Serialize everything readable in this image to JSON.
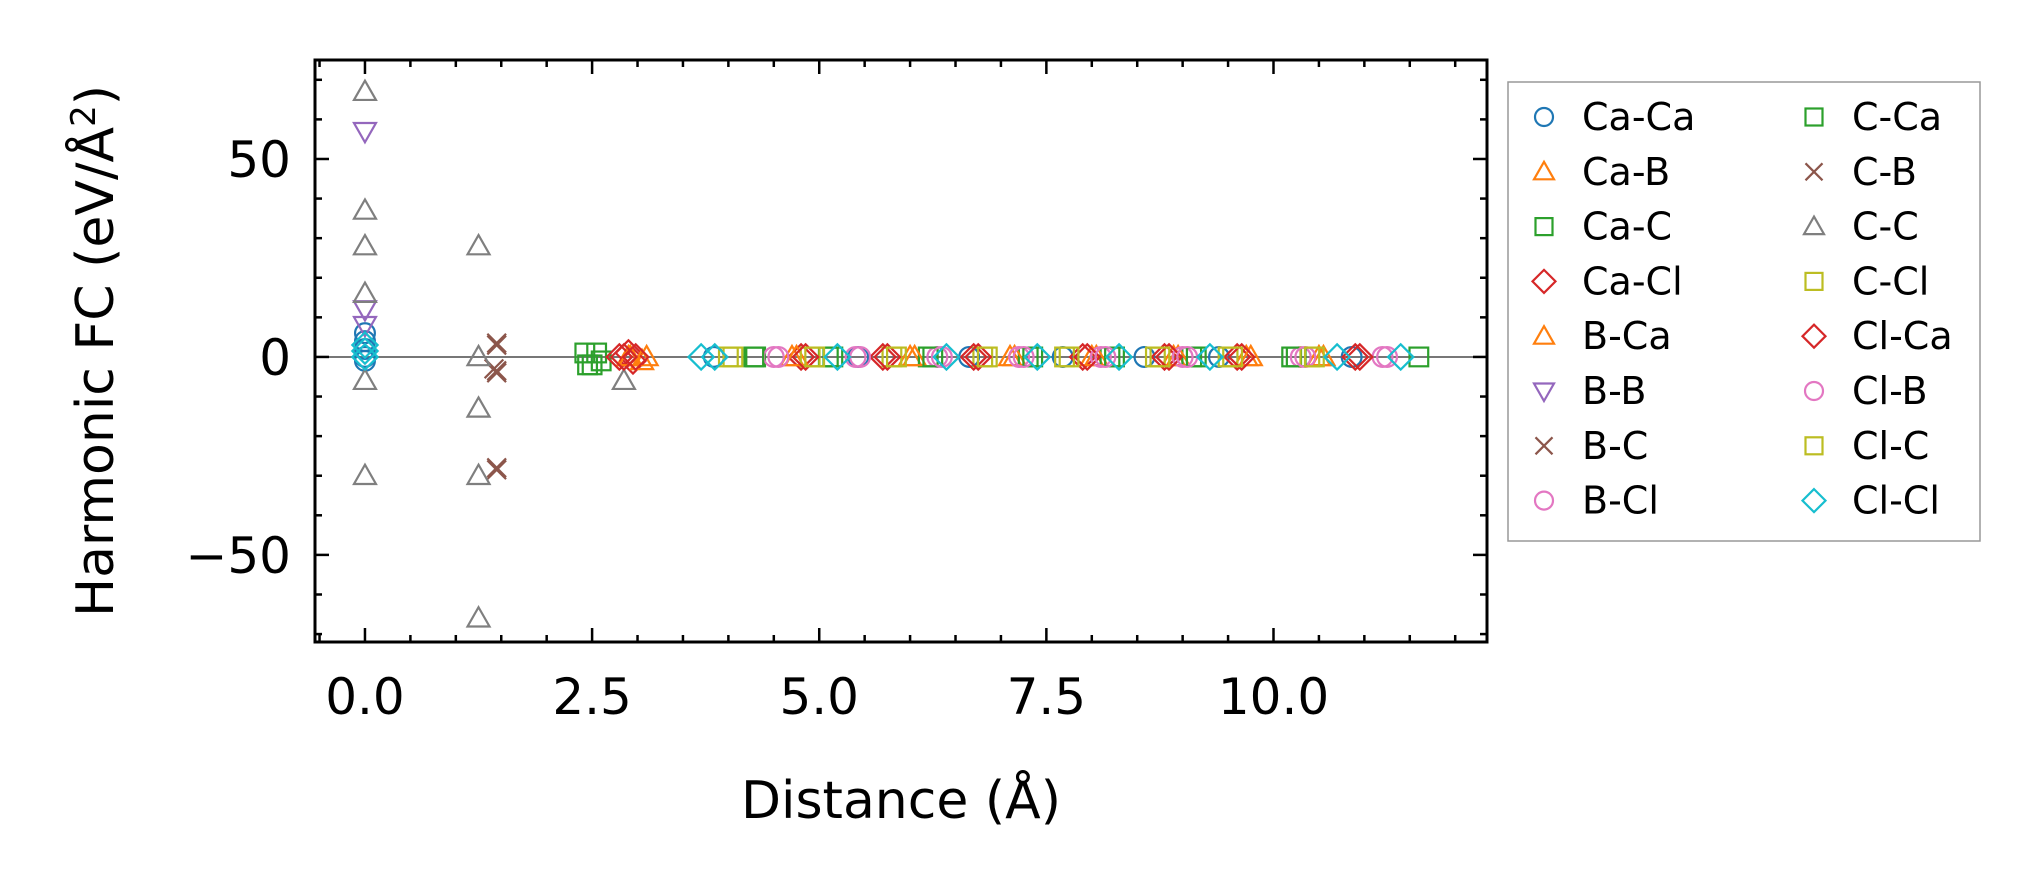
{
  "chart_data": {
    "type": "scatter",
    "title": "",
    "xlabel": "Distance (Å)",
    "ylabel_prefix": "Harmonic FC (eV/Å",
    "ylabel_sup": "2",
    "ylabel_suffix": ")",
    "xlim": [
      -0.55,
      12.35
    ],
    "ylim": [
      -72,
      75
    ],
    "xticks": [
      0.0,
      2.5,
      5.0,
      7.5,
      10.0
    ],
    "xtick_labels": [
      "0.0",
      "2.5",
      "5.0",
      "7.5",
      "10.0"
    ],
    "yticks": [
      -50,
      0,
      50
    ],
    "ytick_labels": [
      "−50",
      "0",
      "50"
    ],
    "reference_line_y": 0,
    "legend_position": "right outside",
    "series": [
      {
        "name": "Ca-Ca",
        "marker": "circle",
        "color": "#1f77b4",
        "points": [
          [
            0,
            0
          ],
          [
            0,
            2
          ],
          [
            0,
            4
          ],
          [
            0,
            6
          ],
          [
            0,
            -1
          ],
          [
            3.84,
            0
          ],
          [
            5.43,
            0
          ],
          [
            6.65,
            0
          ],
          [
            7.68,
            0
          ],
          [
            8.58,
            0
          ],
          [
            9.4,
            0
          ],
          [
            10.86,
            0
          ]
        ]
      },
      {
        "name": "Ca-B",
        "marker": "triangle-up",
        "color": "#ff7f0e",
        "points": [
          [
            2.9,
            0
          ],
          [
            3.1,
            0
          ],
          [
            4.7,
            0
          ],
          [
            6.0,
            0
          ],
          [
            7.1,
            0
          ],
          [
            8.0,
            0
          ],
          [
            8.9,
            0
          ],
          [
            9.7,
            0
          ],
          [
            10.5,
            0
          ]
        ]
      },
      {
        "name": "Ca-C",
        "marker": "square",
        "color": "#2ca02c",
        "points": [
          [
            2.45,
            -2
          ],
          [
            2.55,
            1
          ],
          [
            2.6,
            -1
          ],
          [
            4.3,
            0
          ],
          [
            5.1,
            0
          ],
          [
            6.2,
            0
          ],
          [
            7.3,
            0
          ],
          [
            8.2,
            0
          ],
          [
            9.1,
            0
          ],
          [
            10.2,
            0
          ]
        ]
      },
      {
        "name": "Ca-Cl",
        "marker": "diamond",
        "color": "#d62728",
        "points": [
          [
            2.8,
            0
          ],
          [
            2.9,
            1
          ],
          [
            2.95,
            -1
          ],
          [
            4.8,
            0
          ],
          [
            5.7,
            0
          ],
          [
            6.7,
            0
          ],
          [
            7.9,
            0
          ],
          [
            8.8,
            0
          ],
          [
            9.6,
            0
          ],
          [
            10.9,
            0
          ]
        ]
      },
      {
        "name": "B-Ca",
        "marker": "triangle-up",
        "color": "#ff7f0e",
        "points": [
          [
            2.92,
            0
          ],
          [
            3.05,
            -1
          ],
          [
            4.75,
            0
          ],
          [
            6.05,
            0
          ],
          [
            7.15,
            0
          ],
          [
            8.05,
            0
          ],
          [
            8.95,
            0
          ],
          [
            9.75,
            0
          ],
          [
            10.55,
            0
          ]
        ]
      },
      {
        "name": "B-B",
        "marker": "triangle-down",
        "color": "#9467bd",
        "points": [
          [
            0,
            57
          ],
          [
            0,
            12
          ],
          [
            0,
            8
          ]
        ]
      },
      {
        "name": "B-C",
        "marker": "x",
        "color": "#8c564b",
        "points": [
          [
            1.45,
            3
          ],
          [
            1.45,
            -4
          ],
          [
            1.42,
            -3
          ],
          [
            1.45,
            -28
          ]
        ]
      },
      {
        "name": "B-Cl",
        "marker": "circle",
        "color": "#e377c2",
        "points": [
          [
            4.5,
            0
          ],
          [
            5.4,
            0
          ],
          [
            6.3,
            0
          ],
          [
            7.2,
            0
          ],
          [
            8.1,
            0
          ],
          [
            9.0,
            0
          ],
          [
            10.3,
            0
          ],
          [
            11.2,
            0
          ]
        ]
      },
      {
        "name": "C-Ca",
        "marker": "square",
        "color": "#2ca02c",
        "points": [
          [
            2.42,
            1
          ],
          [
            2.5,
            -2
          ],
          [
            4.28,
            0
          ],
          [
            5.15,
            0
          ],
          [
            6.25,
            0
          ],
          [
            7.35,
            0
          ],
          [
            8.25,
            0
          ],
          [
            9.15,
            0
          ],
          [
            10.25,
            0
          ],
          [
            11.6,
            0
          ]
        ]
      },
      {
        "name": "C-B",
        "marker": "x",
        "color": "#8c564b",
        "points": [
          [
            1.45,
            3.5
          ],
          [
            1.45,
            -3.5
          ],
          [
            1.45,
            -28.5
          ]
        ]
      },
      {
        "name": "C-C",
        "marker": "triangle-up",
        "color": "#7f7f7f",
        "points": [
          [
            0,
            67
          ],
          [
            0,
            37
          ],
          [
            0,
            28
          ],
          [
            0,
            16
          ],
          [
            0,
            -6
          ],
          [
            0,
            -30
          ],
          [
            1.25,
            28
          ],
          [
            1.25,
            0
          ],
          [
            1.25,
            -13
          ],
          [
            1.25,
            -30
          ],
          [
            1.25,
            -66
          ],
          [
            2.85,
            -6
          ]
        ]
      },
      {
        "name": "C-Cl",
        "marker": "square",
        "color": "#bcbd22",
        "points": [
          [
            4.0,
            0
          ],
          [
            4.9,
            0
          ],
          [
            5.8,
            0
          ],
          [
            6.8,
            0
          ],
          [
            7.7,
            0
          ],
          [
            8.7,
            0
          ],
          [
            9.5,
            0
          ],
          [
            10.4,
            0
          ]
        ]
      },
      {
        "name": "Cl-Ca",
        "marker": "diamond",
        "color": "#d62728",
        "points": [
          [
            2.85,
            0
          ],
          [
            2.98,
            0
          ],
          [
            4.85,
            0
          ],
          [
            5.75,
            0
          ],
          [
            6.75,
            0
          ],
          [
            7.95,
            0
          ],
          [
            8.85,
            0
          ],
          [
            9.65,
            0
          ],
          [
            10.95,
            0
          ]
        ]
      },
      {
        "name": "Cl-B",
        "marker": "circle",
        "color": "#e377c2",
        "points": [
          [
            4.55,
            0
          ],
          [
            5.45,
            0
          ],
          [
            6.35,
            0
          ],
          [
            7.25,
            0
          ],
          [
            8.15,
            0
          ],
          [
            9.05,
            0
          ],
          [
            10.35,
            0
          ],
          [
            11.25,
            0
          ]
        ]
      },
      {
        "name": "Cl-C",
        "marker": "square",
        "color": "#bcbd22",
        "points": [
          [
            4.05,
            0
          ],
          [
            4.95,
            0
          ],
          [
            5.85,
            0
          ],
          [
            6.85,
            0
          ],
          [
            7.75,
            0
          ],
          [
            8.75,
            0
          ],
          [
            9.55,
            0
          ],
          [
            10.45,
            0
          ]
        ]
      },
      {
        "name": "Cl-Cl",
        "marker": "diamond",
        "color": "#17becf",
        "points": [
          [
            0,
            0
          ],
          [
            0,
            3
          ],
          [
            0,
            1.5
          ],
          [
            3.7,
            0
          ],
          [
            3.85,
            0
          ],
          [
            5.2,
            0
          ],
          [
            6.4,
            0
          ],
          [
            7.4,
            0
          ],
          [
            8.3,
            0
          ],
          [
            9.3,
            0
          ],
          [
            10.7,
            0
          ],
          [
            11.4,
            0
          ]
        ]
      }
    ]
  }
}
